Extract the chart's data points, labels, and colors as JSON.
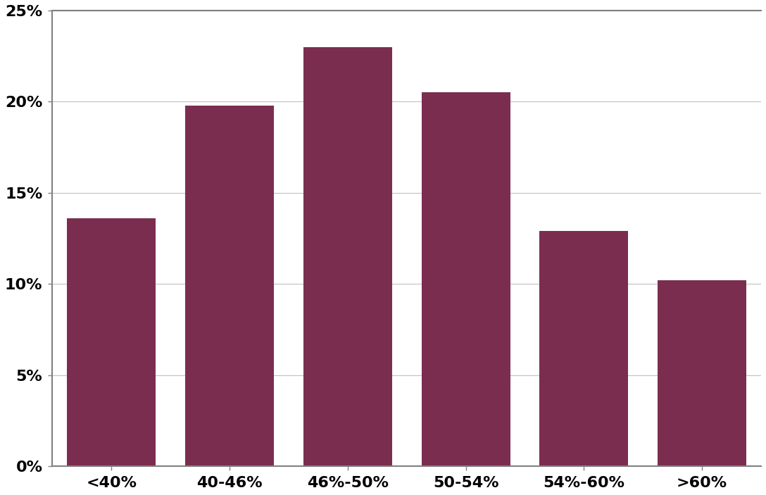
{
  "categories": [
    "<40%",
    "40-46%",
    "46%-50%",
    "50-54%",
    "54%-60%",
    ">60%"
  ],
  "values": [
    0.136,
    0.198,
    0.23,
    0.205,
    0.129,
    0.102
  ],
  "bar_color": "#7B2D50",
  "bar_edgecolor": "#7B2D50",
  "ylim": [
    0,
    0.25
  ],
  "yticks": [
    0.0,
    0.05,
    0.1,
    0.15,
    0.2,
    0.25
  ],
  "ytick_labels": [
    "0%",
    "5%",
    "10%",
    "15%",
    "20%",
    "25%"
  ],
  "background_color": "#ffffff",
  "grid_color": "#c0c0c0",
  "spine_color": "#808080",
  "bar_width": 0.75,
  "tick_fontsize": 16,
  "figsize": [
    10.88,
    7.03
  ],
  "dpi": 100
}
